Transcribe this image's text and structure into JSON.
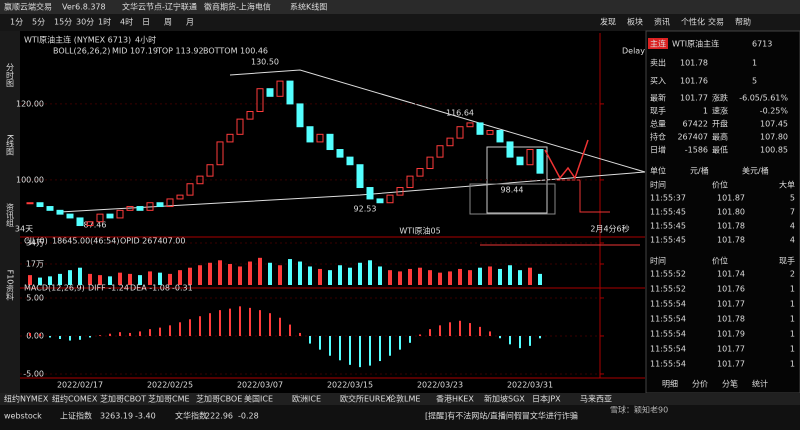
{
  "titlebar": {
    "app": "赢顺云端交易",
    "version": "Ver6.8.378",
    "node": "文华云节点-辽宁联通",
    "broker": "徽商期货-上海电信",
    "mode": "系统K线图",
    "periods": [
      "1分",
      "5分",
      "15分",
      "30分",
      "1时",
      "4时",
      "日",
      "周",
      "月"
    ],
    "menu": [
      "发现",
      "板块",
      "资讯",
      "个性化",
      "交易",
      "帮助"
    ]
  },
  "sidebar": [
    "分时图",
    "K线图",
    "资讯组",
    "F10资料"
  ],
  "chart_header": {
    "title": "WTI原油主连 (NYMEX 6713)",
    "period": "4小时",
    "boll": "BOLL(26,26,2)",
    "mid": "MID 107.19",
    "top": "TOP 113.92",
    "bottom": "BOTTOM 100.46",
    "delay": "Delay"
  },
  "annotations": [
    "130.50",
    "116.64",
    "92.53",
    "98.44",
    "87.46",
    "34天",
    "WTI原油05",
    "2月4分6秒"
  ],
  "chart_data": {
    "type": "candlestick",
    "categories": [
      null,
      null,
      null,
      null,
      null,
      "2022/02/17",
      null,
      null,
      null,
      null,
      null,
      null,
      null,
      null,
      "2022/02/25",
      null,
      null,
      null,
      null,
      null,
      null,
      null,
      null,
      "2022/03/07",
      null,
      null,
      null,
      null,
      null,
      null,
      null,
      null,
      "2022/03/15",
      null,
      null,
      null,
      null,
      null,
      null,
      null,
      null,
      "2022/03/23",
      null,
      null,
      null,
      null,
      null,
      null,
      null,
      null,
      "2022/03/31",
      null
    ],
    "close": [
      94,
      93,
      92,
      91,
      90,
      88,
      89,
      91,
      90,
      92,
      93,
      92,
      94,
      93,
      95,
      96,
      99,
      101,
      104,
      110,
      112,
      116,
      118,
      124,
      122,
      126,
      120,
      114,
      110,
      112,
      108,
      106,
      104,
      98,
      95,
      94,
      96,
      98,
      101,
      103,
      106,
      109,
      111,
      114,
      115,
      112,
      113,
      110,
      106,
      104,
      108,
      101.78
    ],
    "ylim": [
      86.3,
      135.5
    ],
    "yticks": [
      {
        "value": 120,
        "label": "120.00"
      },
      {
        "value": 100,
        "label": "100.00"
      }
    ],
    "volume": {
      "label": "CJL(0)",
      "text": "18645.00(46:54)",
      "opid": "OPID 267407.00",
      "values": [
        8,
        6,
        7,
        9,
        12,
        14,
        9,
        8,
        7,
        10,
        9,
        8,
        11,
        10,
        9,
        12,
        14,
        16,
        18,
        20,
        17,
        15,
        19,
        22,
        18,
        16,
        21,
        19,
        15,
        13,
        12,
        16,
        14,
        18,
        20,
        15,
        12,
        11,
        13,
        14,
        12,
        10,
        11,
        13,
        12,
        14,
        15,
        13,
        16,
        12,
        14,
        9
      ],
      "ylim": [
        0,
        34
      ],
      "yticks": [
        {
          "value": 34,
          "label": "34万"
        },
        {
          "value": 17,
          "label": "17万"
        }
      ]
    },
    "macd": {
      "label": "MACD(12,26,9)",
      "diff": "DIFF -1.24",
      "dea": "DEA -1.08",
      "value": "-0.31",
      "values": [
        0.4,
        0.3,
        -0.2,
        -0.4,
        -0.6,
        -0.5,
        -0.2,
        0.1,
        0.3,
        0.5,
        0.4,
        0.6,
        0.9,
        1.1,
        1.4,
        1.8,
        2.2,
        2.6,
        3.0,
        3.4,
        3.6,
        3.9,
        3.7,
        3.4,
        3.0,
        2.4,
        1.5,
        0.4,
        -1.0,
        -1.8,
        -2.6,
        -3.2,
        -3.8,
        -4.1,
        -3.9,
        -3.3,
        -2.6,
        -1.8,
        -0.9,
        0.2,
        0.9,
        1.4,
        1.8,
        2.0,
        1.7,
        1.2,
        0.6,
        -0.3,
        -1.1,
        -1.6,
        -1.3,
        -0.31
      ],
      "ylim": [
        -5.53,
        6.05
      ],
      "yticks": [
        {
          "value": 5,
          "label": "5.00"
        },
        {
          "value": 0,
          "label": "0.00"
        },
        {
          "value": -5,
          "label": "-5.00"
        }
      ]
    }
  },
  "quote": {
    "tag": "主连",
    "name": "WTI原油主连",
    "code": "6713",
    "sell": [
      "卖出",
      "101.78",
      "1"
    ],
    "buy": [
      "买入",
      "101.76",
      "5"
    ],
    "rows": [
      [
        "最新",
        "101.77",
        "涨跌",
        "-6.05/5.61%"
      ],
      [
        "现手",
        "1",
        "速涨",
        "-0.25%"
      ],
      [
        "总量",
        "67422",
        "开盘",
        "107.45"
      ],
      [
        "持仓",
        "267407",
        "最高",
        "107.80"
      ],
      [
        "日增",
        "-1586",
        "最低",
        "100.85"
      ]
    ],
    "unit": [
      "单位",
      "元/桶",
      "美元/桶"
    ],
    "trades_header": [
      "时间",
      "价位",
      "大单"
    ],
    "trades": [
      [
        "11:55:37",
        "101.87",
        "5"
      ],
      [
        "11:55:45",
        "101.80",
        "7"
      ],
      [
        "11:55:45",
        "101.78",
        "4"
      ],
      [
        "11:55:45",
        "101.78",
        "4"
      ]
    ],
    "trades2_header": [
      "时间",
      "价位",
      "现手"
    ],
    "trades2": [
      [
        "11:55:52",
        "101.74",
        "2"
      ],
      [
        "11:55:52",
        "101.76",
        "1"
      ],
      [
        "11:55:54",
        "101.77",
        "1"
      ],
      [
        "11:55:54",
        "101.78",
        "1"
      ],
      [
        "11:55:54",
        "101.79",
        "1"
      ],
      [
        "11:55:54",
        "101.77",
        "1"
      ],
      [
        "11:55:54",
        "101.77",
        "1"
      ]
    ],
    "tabs": [
      "明细",
      "分价",
      "分笔",
      "统计"
    ]
  },
  "exchanges": [
    "纽约NYMEX",
    "纽约COMEX",
    "芝加哥CBOT",
    "芝加哥CME",
    "芝加哥CBOE",
    "美国ICE",
    "欧洲ICE",
    "欧交所EUREX",
    "伦敦LME",
    "香港HKEX",
    "新加坡SGX",
    "日本JPX",
    "马来西亚"
  ],
  "status": {
    "brand": "webstock",
    "index1": "上证指数",
    "v1": "3263.19",
    "c1": "-3.40",
    "index2": "文华指数",
    "v2": "222.96",
    "c2": "-0.28",
    "notice": "[提醒]有不法网站/直播间假冒文华进行诈骗"
  },
  "watermark": "雪球：颖知老90"
}
